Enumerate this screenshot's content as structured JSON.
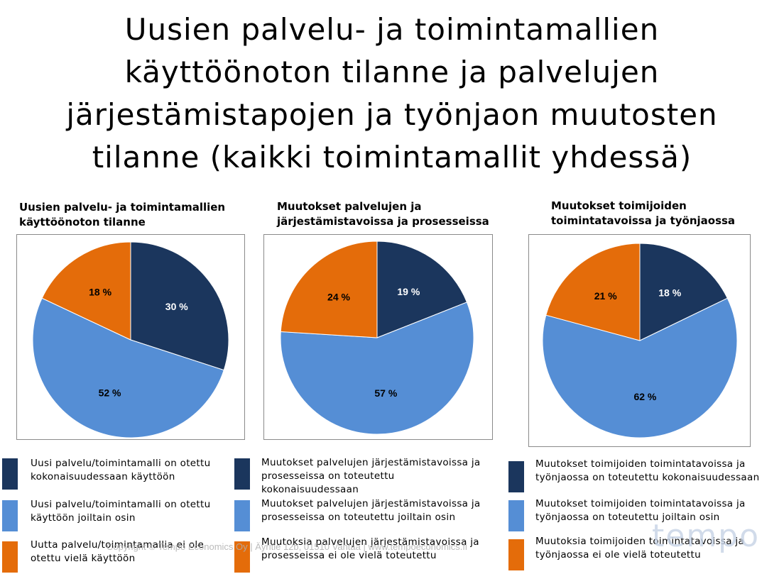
{
  "slide_title": [
    "Uusien palvelu- ja toimintamallien",
    "käyttöönoton tilanne ja palvelujen",
    "järjestämistapojen ja työnjaon muutosten",
    "tilanne (kaikki toimintamallit yhdessä)"
  ],
  "colors": {
    "dark_navy": "#1b365d",
    "light_blue": "#558ed5",
    "orange": "#e46c0a"
  },
  "chart_data": [
    {
      "type": "pie",
      "title": [
        "Uusien palvelu- ja toimintamallien",
        "käyttöönoton tilanne"
      ],
      "values": [
        30,
        52,
        18
      ],
      "labels": [
        "30 %",
        "52 %",
        "18 %"
      ],
      "legend": [
        [
          "Uusi palvelu/toimintamalli on otettu",
          "kokonaisuudessaan käyttöön"
        ],
        [
          "Uusi palvelu/toimintamalli on otettu",
          "käyttöön joiltain osin"
        ],
        [
          "Uutta palvelu/toimintamallia ei ole",
          "otettu vielä käyttöön"
        ]
      ]
    },
    {
      "type": "pie",
      "title": [
        "Muutokset palvelujen ja",
        "järjestämistavoissa ja prosesseissa"
      ],
      "values": [
        19,
        57,
        24
      ],
      "labels": [
        "19 %",
        "57 %",
        "24 %"
      ],
      "legend": [
        [
          "Muutokset palvelujen järjestämistavoissa ja",
          "prosesseissa on toteutettu",
          "kokonaisuudessaan"
        ],
        [
          "Muutokset palvelujen järjestämistavoissa ja",
          "prosesseissa on toteutettu joiltain osin"
        ],
        [
          "Muutoksia palvelujen järjestämistavoissa ja",
          "prosesseissa ei ole vielä toteutettu"
        ]
      ]
    },
    {
      "type": "pie",
      "title": [
        "Muutokset toimijoiden",
        "toimintatavoissa ja työnjaossa"
      ],
      "values": [
        18,
        62,
        21
      ],
      "labels": [
        "18 %",
        "62 %",
        "21 %"
      ],
      "legend": [
        [
          "Muutokset toimijoiden toimintatavoissa ja",
          "työnjaossa on toteutettu kokonaisuudessaan"
        ],
        [
          "Muutokset toimijoiden toimintatavoissa ja",
          "työnjaossa on toteutettu joiltain osin"
        ],
        [
          "Muutoksia toimijoiden toimintatavoissa ja",
          "työnjaossa ei ole vielä toteutettu"
        ]
      ]
    }
  ],
  "footer": "Copyright © Tempo Economics Oy | Äyritie 12b, 01510 Vantaa | www.tempoeconomics.fi",
  "logo_text": "tempo"
}
